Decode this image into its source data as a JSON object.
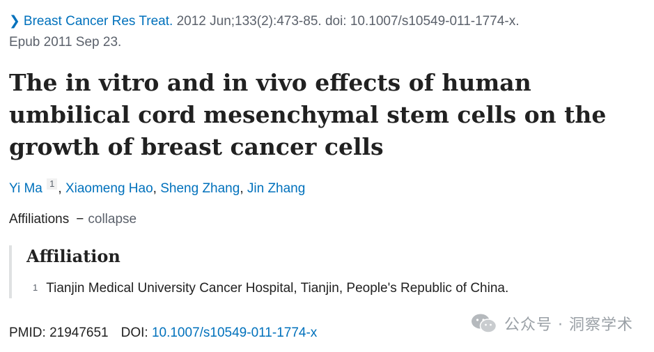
{
  "citation": {
    "journal": "Breast Cancer Res Treat.",
    "details": " 2012 Jun;133(2):473-85. doi: 10.1007/s10549-011-1774-x.",
    "epub": "Epub 2011 Sep 23."
  },
  "title": "The in vitro and in vivo effects of human umbilical cord mesenchymal stem cells on the growth of breast cancer cells",
  "authors": {
    "a1": "Yi Ma",
    "a1_sup": "1",
    "a2": "Xiaomeng Hao",
    "a3": "Sheng Zhang",
    "a4": "Jin Zhang",
    "sep": ", "
  },
  "affiliations_toggle": {
    "label": "Affiliations",
    "dash": "−",
    "action": "collapse"
  },
  "affiliation_section": {
    "heading": "Affiliation",
    "items": [
      {
        "num": "1",
        "text": "Tianjin Medical University Cancer Hospital, Tianjin, People's Republic of China."
      }
    ]
  },
  "identifiers": {
    "pmid_label": "PMID: ",
    "pmid": "21947651",
    "doi_label": "DOI: ",
    "doi": "10.1007/s10549-011-1774-x"
  },
  "watermark": {
    "text": "公众号 · 洞察学术",
    "icon": "wechat-icon"
  },
  "colors": {
    "link": "#0071bc",
    "muted": "#5b616b",
    "text": "#212121"
  }
}
